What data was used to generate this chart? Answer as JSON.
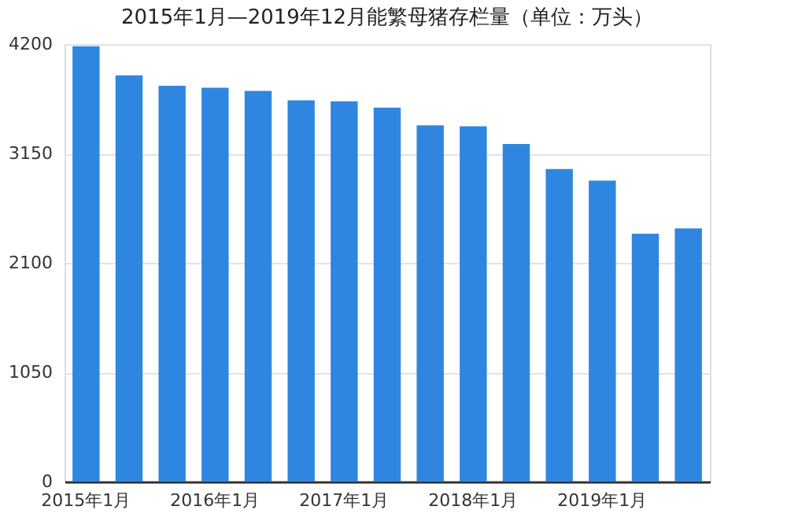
{
  "chart_data": {
    "type": "bar",
    "title": "2015年1月—2019年12月能繁母猪存栏量（单位：万头）",
    "categories": [
      "2015年1月",
      null,
      null,
      "2016年1月",
      null,
      null,
      "2017年1月",
      null,
      null,
      "2018年1月",
      null,
      null,
      "2019年1月",
      null,
      null
    ],
    "values": [
      4180,
      3900,
      3800,
      3780,
      3750,
      3660,
      3650,
      3590,
      3420,
      3410,
      3240,
      3000,
      2890,
      2380,
      2430
    ],
    "color": "#2f86e0",
    "ylim": [
      0,
      4200
    ],
    "yticks": [
      0,
      1050,
      2100,
      3150,
      4200
    ],
    "grid": "y"
  }
}
